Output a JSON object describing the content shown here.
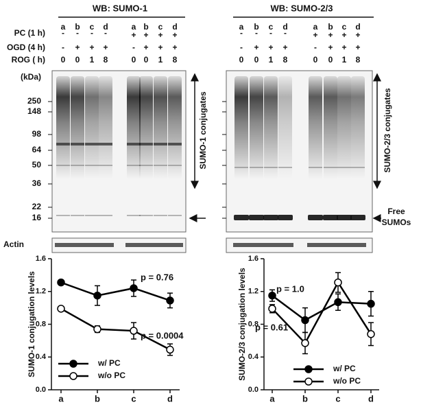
{
  "blots": [
    {
      "title": "WB: SUMO-1",
      "conjugates_label": "SUMO-1 conjugates"
    },
    {
      "title": "WB: SUMO-2/3",
      "conjugates_label": "SUMO-2/3 conjugates",
      "free_label": [
        "Free",
        "SUMOs"
      ]
    }
  ],
  "row_labels": [
    "PC (1 h)",
    "OGD (4 h)",
    "ROG ( h)"
  ],
  "lanes": {
    "letters": [
      "a",
      "b",
      "c",
      "d",
      "a",
      "b",
      "c",
      "d"
    ],
    "PC": [
      "-",
      "-",
      "-",
      "-",
      "+",
      "+",
      "+",
      "+"
    ],
    "OGD": [
      "-",
      "+",
      "+",
      "+",
      "-",
      "+",
      "+",
      "+"
    ],
    "ROG": [
      0,
      0,
      1,
      8,
      0,
      0,
      1,
      8
    ]
  },
  "kda_label": "(kDa)",
  "markers": [
    250,
    148,
    98,
    64,
    50,
    36,
    22,
    16
  ],
  "actin_label": "Actin",
  "chart_data": [
    {
      "type": "line",
      "y_label": "SUMO-1 conjugation levels",
      "categories": [
        "a",
        "b",
        "c",
        "d"
      ],
      "ylim": [
        0,
        1.6
      ],
      "yticks": [
        {
          "value": 0,
          "label": "0.0"
        },
        0.4,
        0.8,
        1.2,
        1.6
      ],
      "legend": "lower left",
      "series": [
        {
          "name": "w/ PC",
          "color": "#000000",
          "marker": "filled",
          "values": [
            1.31,
            1.15,
            1.24,
            1.09
          ],
          "errors": [
            0.03,
            0.12,
            0.1,
            0.09
          ]
        },
        {
          "name": "w/o PC",
          "color": "#000000",
          "marker": "open",
          "values": [
            0.99,
            0.74,
            0.72,
            0.49
          ],
          "errors": [
            0.02,
            0.04,
            0.1,
            0.07
          ]
        }
      ],
      "annotations": [
        "p = 0.76",
        "p = 0.0004"
      ]
    },
    {
      "type": "line",
      "y_label": "SUMO-2/3 conjugation levels",
      "categories": [
        "a",
        "b",
        "c",
        "d"
      ],
      "ylim": [
        0,
        1.6
      ],
      "yticks": [
        {
          "value": 0,
          "label": "0.0"
        },
        0.4,
        0.8,
        1.2,
        1.6
      ],
      "legend": "lower right",
      "series": [
        {
          "name": "w/ PC",
          "color": "#000000",
          "marker": "filled",
          "values": [
            1.15,
            0.85,
            1.07,
            1.05
          ],
          "errors": [
            0.07,
            0.15,
            0.1,
            0.15
          ]
        },
        {
          "name": "w/o PC",
          "color": "#000000",
          "marker": "open",
          "values": [
            0.99,
            0.57,
            1.31,
            0.68
          ],
          "errors": [
            0.05,
            0.13,
            0.12,
            0.14
          ]
        }
      ],
      "annotations": [
        "p = 1.0",
        "p = 0.61"
      ]
    }
  ]
}
